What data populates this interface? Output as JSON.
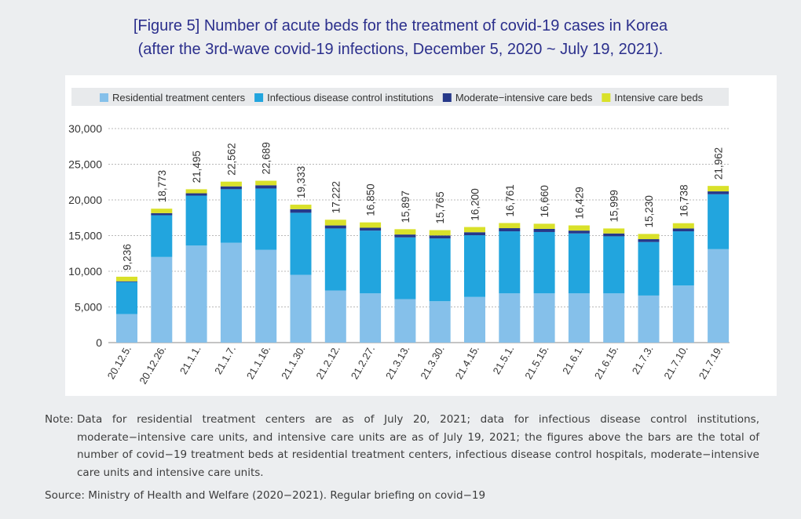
{
  "title": {
    "line1": "[Figure 5] Number of acute beds for the treatment of covid-19 cases in Korea",
    "line2": "(after the 3rd-wave covid-19 infections, December 5, 2020 ~ July 19, 2021)."
  },
  "note": {
    "label": "Note:",
    "text": "Data for residential treatment centers are as of July 20, 2021; data for infectious disease control institutions, moderate−intensive care units, and intensive care units are as of July 19, 2021; the figures above the bars are the total of number of covid−19 treatment beds at residential treatment centers, infectious disease control hospitals, moderate−intensive care units and intensive care units."
  },
  "source": "Source: Ministry of Health and Welfare (2020−2021). Regular briefing on covid−19",
  "chart_data": {
    "type": "bar",
    "stacked": true,
    "title": "",
    "xlabel": "",
    "ylabel": "",
    "ylim": [
      0,
      30000
    ],
    "yticks": [
      0,
      5000,
      10000,
      15000,
      20000,
      25000,
      30000
    ],
    "ytick_labels": [
      "0",
      "5,000",
      "10,000",
      "15,000",
      "20,000",
      "25,000",
      "30,000"
    ],
    "grid": true,
    "legend_position": "top",
    "categories": [
      "20.12.5.",
      "20.12.26.",
      "21.1.1.",
      "21.1.7.",
      "21.1.16.",
      "21.1.30.",
      "21.2.12.",
      "21.2.27.",
      "21.3.13.",
      "21.3.30.",
      "21.4.15.",
      "21.5.1.",
      "21.5.15.",
      "21.6.1.",
      "21.6.15.",
      "21.7.3.",
      "21.7.10.",
      "21.7.19."
    ],
    "totals": [
      9236,
      18773,
      21495,
      22562,
      22689,
      19333,
      17222,
      16850,
      15897,
      15765,
      16200,
      16761,
      16660,
      16429,
      15999,
      15230,
      16738,
      21962
    ],
    "total_labels": [
      "9,236",
      "18,773",
      "21,495",
      "22,562",
      "22,689",
      "19,333",
      "17,222",
      "16,850",
      "15,897",
      "15,765",
      "16,200",
      "16,761",
      "16,660",
      "16,429",
      "15,999",
      "15,230",
      "16,738",
      "21,962"
    ],
    "series": [
      {
        "name": "Residential treatment centers",
        "color": "#85c0ea",
        "values": [
          4000,
          12000,
          13600,
          14000,
          13000,
          9500,
          7300,
          6900,
          6100,
          5800,
          6400,
          6900,
          6900,
          6900,
          6900,
          6600,
          8000,
          13100
        ]
      },
      {
        "name": "Infectious disease control institutions",
        "color": "#22a5de",
        "values": [
          4500,
          5850,
          7000,
          7500,
          8600,
          8700,
          8700,
          8800,
          8650,
          8800,
          8650,
          8700,
          8600,
          8400,
          8000,
          7500,
          7600,
          7700
        ]
      },
      {
        "name": "Moderate−intensive care beds",
        "color": "#263889",
        "values": [
          100,
          300,
          330,
          400,
          450,
          500,
          420,
          400,
          400,
          420,
          420,
          440,
          440,
          400,
          400,
          400,
          400,
          400
        ]
      },
      {
        "name": "Intensive care beds",
        "color": "#d9e12a",
        "values": [
          636,
          623,
          565,
          662,
          639,
          633,
          802,
          750,
          747,
          745,
          730,
          721,
          720,
          729,
          699,
          730,
          738,
          762
        ]
      }
    ]
  }
}
